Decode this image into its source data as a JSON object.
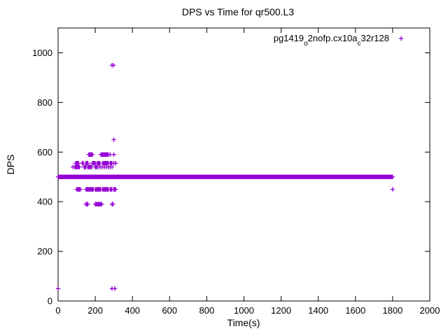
{
  "window": {
    "title": "DPS vs Time for qr500.L3"
  },
  "chart_data": {
    "type": "scatter",
    "title": "DPS vs Time for qr500.L3",
    "xlabel": "Time(s)",
    "ylabel": "DPS",
    "xlim": [
      0,
      2000
    ],
    "ylim": [
      0,
      1100
    ],
    "xticks": [
      0,
      200,
      400,
      600,
      800,
      1000,
      1200,
      1400,
      1600,
      1800,
      2000
    ],
    "yticks": [
      0,
      200,
      400,
      600,
      800,
      1000
    ],
    "grid": false,
    "marker": "plus",
    "marker_color": "#9400d3",
    "legend": {
      "position": "top-right-inside",
      "label_plain": "pg1419_o2nofp.cx10a_c32r128",
      "label_parts": [
        {
          "text": "pg1419"
        },
        {
          "text": "o",
          "sub": true
        },
        {
          "text": "2nofp.cx10a"
        },
        {
          "text": "c",
          "sub": true
        },
        {
          "text": "32r128"
        }
      ]
    },
    "series": [
      {
        "name": "pg1419_o2nofp.cx10a_c32r128",
        "band": {
          "y": 500,
          "x_start": 0,
          "x_end": 1800,
          "step": 3
        },
        "points": [
          [
            0,
            50
          ],
          [
            80,
            540
          ],
          [
            90,
            540
          ],
          [
            95,
            540
          ],
          [
            100,
            540
          ],
          [
            105,
            540
          ],
          [
            110,
            540
          ],
          [
            115,
            540
          ],
          [
            140,
            540
          ],
          [
            145,
            540
          ],
          [
            150,
            540
          ],
          [
            160,
            540
          ],
          [
            165,
            540
          ],
          [
            170,
            540
          ],
          [
            175,
            540
          ],
          [
            180,
            540
          ],
          [
            200,
            540
          ],
          [
            205,
            540
          ],
          [
            210,
            540
          ],
          [
            220,
            540
          ],
          [
            230,
            540
          ],
          [
            240,
            540
          ],
          [
            250,
            540
          ],
          [
            260,
            540
          ],
          [
            270,
            540
          ],
          [
            280,
            540
          ],
          [
            290,
            540
          ],
          [
            95,
            555
          ],
          [
            100,
            555
          ],
          [
            105,
            555
          ],
          [
            110,
            555
          ],
          [
            130,
            555
          ],
          [
            135,
            555
          ],
          [
            150,
            555
          ],
          [
            155,
            555
          ],
          [
            160,
            555
          ],
          [
            185,
            555
          ],
          [
            190,
            555
          ],
          [
            195,
            555
          ],
          [
            200,
            555
          ],
          [
            210,
            555
          ],
          [
            215,
            555
          ],
          [
            220,
            555
          ],
          [
            225,
            555
          ],
          [
            240,
            555
          ],
          [
            245,
            555
          ],
          [
            250,
            555
          ],
          [
            255,
            555
          ],
          [
            260,
            555
          ],
          [
            265,
            555
          ],
          [
            270,
            555
          ],
          [
            280,
            555
          ],
          [
            285,
            555
          ],
          [
            290,
            555
          ],
          [
            300,
            555
          ],
          [
            310,
            555
          ],
          [
            165,
            590
          ],
          [
            170,
            590
          ],
          [
            175,
            590
          ],
          [
            180,
            590
          ],
          [
            185,
            590
          ],
          [
            230,
            590
          ],
          [
            235,
            590
          ],
          [
            240,
            590
          ],
          [
            245,
            590
          ],
          [
            250,
            590
          ],
          [
            255,
            590
          ],
          [
            260,
            590
          ],
          [
            265,
            590
          ],
          [
            270,
            590
          ],
          [
            280,
            590
          ],
          [
            300,
            590
          ],
          [
            100,
            450
          ],
          [
            105,
            450
          ],
          [
            110,
            450
          ],
          [
            115,
            450
          ],
          [
            120,
            450
          ],
          [
            150,
            450
          ],
          [
            155,
            450
          ],
          [
            160,
            450
          ],
          [
            165,
            450
          ],
          [
            170,
            450
          ],
          [
            175,
            450
          ],
          [
            180,
            450
          ],
          [
            185,
            450
          ],
          [
            190,
            450
          ],
          [
            200,
            450
          ],
          [
            205,
            450
          ],
          [
            210,
            450
          ],
          [
            215,
            450
          ],
          [
            220,
            450
          ],
          [
            225,
            450
          ],
          [
            230,
            450
          ],
          [
            240,
            450
          ],
          [
            245,
            450
          ],
          [
            250,
            450
          ],
          [
            255,
            450
          ],
          [
            260,
            450
          ],
          [
            265,
            450
          ],
          [
            270,
            450
          ],
          [
            280,
            450
          ],
          [
            285,
            450
          ],
          [
            290,
            450
          ],
          [
            300,
            450
          ],
          [
            305,
            450
          ],
          [
            310,
            450
          ],
          [
            150,
            390
          ],
          [
            155,
            390
          ],
          [
            160,
            390
          ],
          [
            200,
            390
          ],
          [
            205,
            390
          ],
          [
            210,
            390
          ],
          [
            215,
            390
          ],
          [
            220,
            390
          ],
          [
            225,
            390
          ],
          [
            230,
            390
          ],
          [
            235,
            390
          ],
          [
            290,
            390
          ],
          [
            295,
            390
          ],
          [
            300,
            650
          ],
          [
            290,
            950
          ],
          [
            298,
            950
          ],
          [
            290,
            50
          ],
          [
            305,
            50
          ],
          [
            1800,
            450
          ]
        ]
      }
    ]
  }
}
